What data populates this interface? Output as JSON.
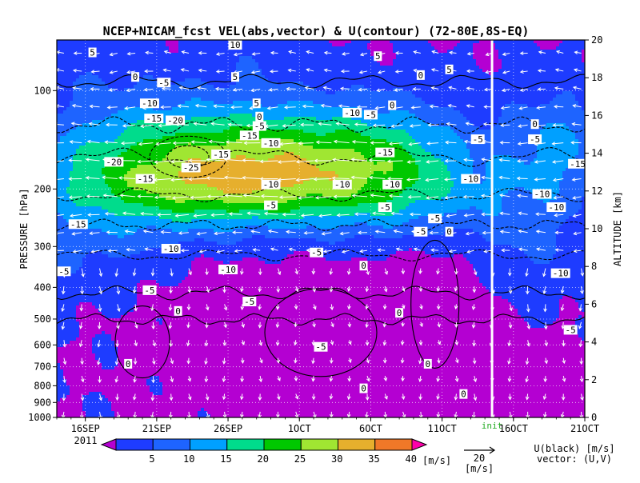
{
  "chart_data": {
    "type": "heatmap",
    "title": "NCEP+NICAM_fcst VEL(abs,vector) & U(contour)  (72-80E,8S-EQ)",
    "ylabel_left": "PRESSURE [hPa]",
    "ylabel_right": "ALTITUDE [km]",
    "x_axis": {
      "ticks": [
        "16SEP",
        "21SEP",
        "26SEP",
        "1OCT",
        "6OCT",
        "11OCT",
        "16OCT",
        "21OCT"
      ],
      "tick_days": [
        0,
        5,
        10,
        15,
        20,
        25,
        30,
        35
      ],
      "year_label": "2011",
      "range_days": [
        -2,
        35
      ]
    },
    "y_left": {
      "scale": "log",
      "range": [
        1000,
        70
      ],
      "ticks": [
        100,
        200,
        300,
        400,
        500,
        600,
        700,
        800,
        900,
        1000
      ],
      "labels": [
        "100",
        "200",
        "300",
        "400",
        "500",
        "600",
        "700",
        "800",
        "900",
        "1000"
      ]
    },
    "y_right": {
      "ticks": [
        0,
        2,
        4,
        6,
        8,
        10,
        12,
        14,
        16,
        18,
        20
      ],
      "labels": [
        "0",
        "2",
        "4",
        "6",
        "8",
        "10",
        "12",
        "14",
        "16",
        "18",
        "20"
      ]
    },
    "init_marker": {
      "day": 28.5,
      "label": "init"
    },
    "colorbar": {
      "levels": [
        5,
        10,
        15,
        20,
        25,
        30,
        35,
        40
      ],
      "labels": [
        "5",
        "10",
        "15",
        "20",
        "25",
        "30",
        "35",
        "40"
      ],
      "colors": [
        "#b400d2",
        "#1e3cff",
        "#1e64ff",
        "#00a0ff",
        "#00dc8c",
        "#00c800",
        "#a0e632",
        "#e6af2d",
        "#f07828",
        "#ff00aa"
      ],
      "unit": "[m/s]"
    },
    "vector_key": {
      "value": "20",
      "unit": "[m/s]"
    },
    "legend_note": {
      "line1": "U(black) [m/s]",
      "line2": "vector: (U,V)"
    },
    "contour_labels": [
      {
        "v": "5",
        "d": 0.5,
        "z": 19.3
      },
      {
        "v": "0",
        "d": 3.5,
        "z": 18.0
      },
      {
        "v": "-5",
        "d": 5.5,
        "z": 17.7
      },
      {
        "v": "-10",
        "d": 4.5,
        "z": 16.6
      },
      {
        "v": "-15",
        "d": 4.8,
        "z": 15.8
      },
      {
        "v": "-20",
        "d": 6.3,
        "z": 15.7
      },
      {
        "v": "-25",
        "d": 7.4,
        "z": 13.2
      },
      {
        "v": "-20",
        "d": 2.0,
        "z": 13.5
      },
      {
        "v": "-15",
        "d": 4.2,
        "z": 12.6
      },
      {
        "v": "-15",
        "d": 9.5,
        "z": 13.9
      },
      {
        "v": "-15",
        "d": 11.5,
        "z": 14.9
      },
      {
        "v": "-10",
        "d": 13.0,
        "z": 14.5
      },
      {
        "v": "-5",
        "d": 12.2,
        "z": 15.4
      },
      {
        "v": "5",
        "d": 10.5,
        "z": 18.0
      },
      {
        "v": "5",
        "d": 12.0,
        "z": 16.6
      },
      {
        "v": "0",
        "d": 12.2,
        "z": 15.9
      },
      {
        "v": "-10",
        "d": 18.7,
        "z": 16.1
      },
      {
        "v": "-5",
        "d": 20.0,
        "z": 16.0
      },
      {
        "v": "0",
        "d": 21.5,
        "z": 16.5
      },
      {
        "v": "-15",
        "d": 21.0,
        "z": 14.0
      },
      {
        "v": "-10",
        "d": 13.0,
        "z": 12.3
      },
      {
        "v": "-10",
        "d": 18.0,
        "z": 12.3
      },
      {
        "v": "-10",
        "d": 21.5,
        "z": 12.3
      },
      {
        "v": "-5",
        "d": 13.0,
        "z": 11.2
      },
      {
        "v": "-5",
        "d": 21.0,
        "z": 11.1
      },
      {
        "v": "-5",
        "d": 24.5,
        "z": 10.5
      },
      {
        "v": "-5",
        "d": 27.5,
        "z": 14.7
      },
      {
        "v": "-10",
        "d": 27.0,
        "z": 12.6
      },
      {
        "v": "-15",
        "d": -0.5,
        "z": 10.2
      },
      {
        "v": "-10",
        "d": 6.0,
        "z": 8.9
      },
      {
        "v": "-5",
        "d": 16.2,
        "z": 8.7
      },
      {
        "v": "-5",
        "d": 23.5,
        "z": 9.8
      },
      {
        "v": "0",
        "d": 25.5,
        "z": 9.8
      },
      {
        "v": "-5",
        "d": -1.5,
        "z": 7.7
      },
      {
        "v": "-10",
        "d": 10.0,
        "z": 7.8
      },
      {
        "v": "-5",
        "d": 4.5,
        "z": 6.7
      },
      {
        "v": "-5",
        "d": 11.5,
        "z": 6.1
      },
      {
        "v": "0",
        "d": 6.5,
        "z": 5.6
      },
      {
        "v": "0",
        "d": 19.5,
        "z": 8.0
      },
      {
        "v": "0",
        "d": 22.0,
        "z": 5.5
      },
      {
        "v": "-5",
        "d": 16.5,
        "z": 3.7
      },
      {
        "v": "0",
        "d": 3.0,
        "z": 2.8
      },
      {
        "v": "0",
        "d": 24.0,
        "z": 2.8
      },
      {
        "v": "0",
        "d": 26.5,
        "z": 1.2
      },
      {
        "v": "0",
        "d": 19.5,
        "z": 1.5
      },
      {
        "v": "5",
        "d": 20.5,
        "z": 19.1
      },
      {
        "v": "5",
        "d": 25.5,
        "z": 18.4
      },
      {
        "v": "0",
        "d": 23.5,
        "z": 18.1
      },
      {
        "v": "0",
        "d": 31.5,
        "z": 15.5
      },
      {
        "v": "-5",
        "d": 31.5,
        "z": 14.7
      },
      {
        "v": "-10",
        "d": 32.0,
        "z": 11.8
      },
      {
        "v": "-10",
        "d": 33.0,
        "z": 11.1
      },
      {
        "v": "-15",
        "d": 34.5,
        "z": 13.4
      },
      {
        "v": "-10",
        "d": 33.3,
        "z": 7.6
      },
      {
        "v": "-5",
        "d": 34.0,
        "z": 4.6
      },
      {
        "v": "10",
        "d": 10.5,
        "z": 19.7
      }
    ]
  }
}
